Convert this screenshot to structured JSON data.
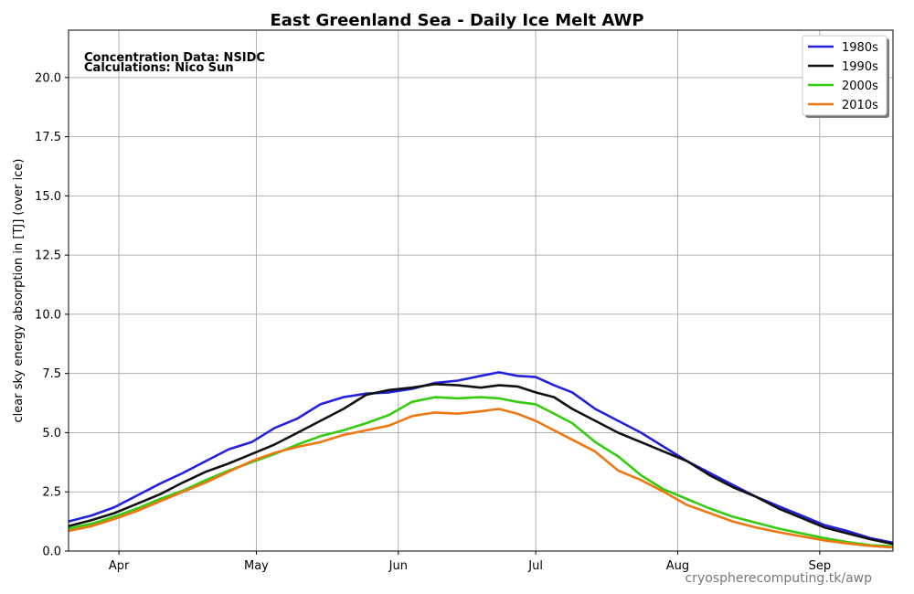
{
  "chart_data": {
    "type": "line",
    "title": "East Greenland Sea - Daily Ice Melt  AWP",
    "ylabel": "clear sky energy absorption in  [TJ] (over ice)",
    "xlabel": "",
    "annotations": [
      "Concentration Data: NSIDC",
      "Calculations: Nico Sun"
    ],
    "watermark": "cryospherecomputing.tk/awp",
    "ylim": [
      0,
      22
    ],
    "xlim": [
      80,
      260
    ],
    "yticks": [
      0.0,
      2.5,
      5.0,
      7.5,
      10.0,
      12.5,
      15.0,
      17.5,
      20.0
    ],
    "ytick_labels": [
      "0.0",
      "2.5",
      "5.0",
      "7.5",
      "10.0",
      "12.5",
      "15.0",
      "17.5",
      "20.0"
    ],
    "xticks": [
      91,
      121,
      152,
      182,
      213,
      244
    ],
    "xtick_labels": [
      "Apr",
      "May",
      "Jun",
      "Jul",
      "Aug",
      "Sep"
    ],
    "grid": true,
    "legend_position": "top-right",
    "series": [
      {
        "name": "1980s",
        "color": "#2222dd",
        "x": [
          80,
          85,
          90,
          95,
          100,
          105,
          110,
          115,
          120,
          125,
          130,
          135,
          140,
          145,
          150,
          155,
          160,
          165,
          170,
          174,
          178,
          182,
          186,
          190,
          195,
          200,
          205,
          210,
          215,
          220,
          225,
          230,
          235,
          240,
          245,
          250,
          255,
          260
        ],
        "y": [
          1.25,
          1.5,
          1.85,
          2.35,
          2.85,
          3.3,
          3.8,
          4.3,
          4.6,
          5.2,
          5.6,
          6.2,
          6.5,
          6.65,
          6.7,
          6.85,
          7.1,
          7.2,
          7.4,
          7.55,
          7.4,
          7.35,
          7.0,
          6.7,
          6.0,
          5.5,
          5.0,
          4.4,
          3.8,
          3.3,
          2.8,
          2.3,
          1.9,
          1.5,
          1.1,
          0.85,
          0.55,
          0.35
        ]
      },
      {
        "name": "1990s",
        "color": "#111111",
        "x": [
          80,
          85,
          90,
          95,
          100,
          105,
          110,
          115,
          120,
          125,
          130,
          135,
          140,
          145,
          150,
          155,
          160,
          165,
          170,
          174,
          178,
          182,
          186,
          190,
          195,
          200,
          205,
          210,
          215,
          220,
          225,
          230,
          235,
          240,
          245,
          250,
          255,
          260
        ],
        "y": [
          1.05,
          1.3,
          1.6,
          2.0,
          2.4,
          2.9,
          3.35,
          3.7,
          4.1,
          4.5,
          5.0,
          5.5,
          6.0,
          6.6,
          6.8,
          6.9,
          7.05,
          7.0,
          6.9,
          7.0,
          6.95,
          6.7,
          6.5,
          6.0,
          5.5,
          5.0,
          4.6,
          4.2,
          3.8,
          3.2,
          2.7,
          2.3,
          1.8,
          1.4,
          1.0,
          0.75,
          0.5,
          0.3
        ]
      },
      {
        "name": "2000s",
        "color": "#33cc11",
        "x": [
          80,
          85,
          90,
          95,
          100,
          105,
          110,
          115,
          120,
          125,
          130,
          135,
          140,
          145,
          150,
          155,
          160,
          165,
          170,
          174,
          178,
          182,
          186,
          190,
          195,
          200,
          205,
          210,
          215,
          220,
          225,
          230,
          235,
          240,
          245,
          250,
          255,
          260
        ],
        "y": [
          0.95,
          1.15,
          1.45,
          1.8,
          2.2,
          2.55,
          3.0,
          3.4,
          3.75,
          4.1,
          4.5,
          4.85,
          5.1,
          5.4,
          5.75,
          6.3,
          6.5,
          6.45,
          6.5,
          6.45,
          6.3,
          6.2,
          5.8,
          5.4,
          4.6,
          4.0,
          3.2,
          2.6,
          2.2,
          1.8,
          1.45,
          1.2,
          0.95,
          0.75,
          0.55,
          0.38,
          0.25,
          0.2
        ]
      },
      {
        "name": "2010s",
        "color": "#ee7711",
        "x": [
          80,
          85,
          90,
          95,
          100,
          105,
          110,
          115,
          120,
          125,
          130,
          135,
          140,
          145,
          150,
          155,
          160,
          165,
          170,
          174,
          178,
          182,
          186,
          190,
          195,
          200,
          205,
          210,
          215,
          220,
          225,
          230,
          235,
          240,
          245,
          250,
          255,
          260
        ],
        "y": [
          0.85,
          1.05,
          1.35,
          1.7,
          2.1,
          2.5,
          2.9,
          3.35,
          3.8,
          4.15,
          4.4,
          4.6,
          4.9,
          5.1,
          5.3,
          5.7,
          5.85,
          5.8,
          5.9,
          6.0,
          5.8,
          5.5,
          5.1,
          4.7,
          4.2,
          3.4,
          3.0,
          2.5,
          1.95,
          1.6,
          1.25,
          1.0,
          0.8,
          0.62,
          0.45,
          0.32,
          0.22,
          0.15
        ]
      }
    ]
  }
}
